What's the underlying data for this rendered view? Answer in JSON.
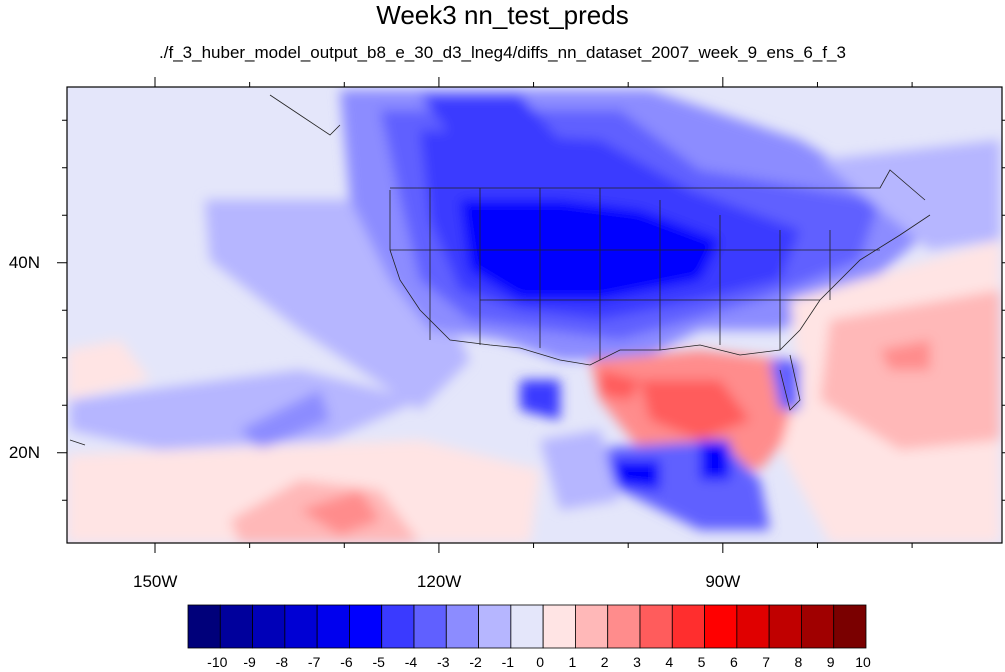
{
  "title": "Week3 nn_test_preds",
  "subtitle": "./f_3_huber_model_output_b8_e_30_d3_lneg4/diffs_nn_dataset_2007_week_9_ens_6_f_3",
  "axes": {
    "x_ticks": [
      {
        "value": -150,
        "label": "150W"
      },
      {
        "value": -120,
        "label": "120W"
      },
      {
        "value": -90,
        "label": "90W"
      }
    ],
    "y_ticks": [
      {
        "value": 40,
        "label": "40N"
      },
      {
        "value": 20,
        "label": "20N"
      }
    ],
    "lon_range": [
      -159.3,
      -60.5
    ],
    "lat_range": [
      10.5,
      58.5
    ]
  },
  "colorbar": {
    "labels": [
      "-10",
      "-9",
      "-8",
      "-7",
      "-6",
      "-5",
      "-4",
      "-3",
      "-2",
      "-1",
      "0",
      "1",
      "2",
      "3",
      "4",
      "5",
      "6",
      "7",
      "8",
      "9",
      "10"
    ],
    "colors": [
      "#00007a",
      "#00009c",
      "#0000b8",
      "#0000d4",
      "#0000ee",
      "#0000ff",
      "#3a3aff",
      "#6060ff",
      "#8c8cff",
      "#b6b6ff",
      "#e4e6fa",
      "#ffe4e4",
      "#ffb8b8",
      "#ff8c8c",
      "#ff5c5c",
      "#ff2e2e",
      "#ff0000",
      "#e00000",
      "#c00000",
      "#a00000",
      "#7a0000"
    ]
  }
}
